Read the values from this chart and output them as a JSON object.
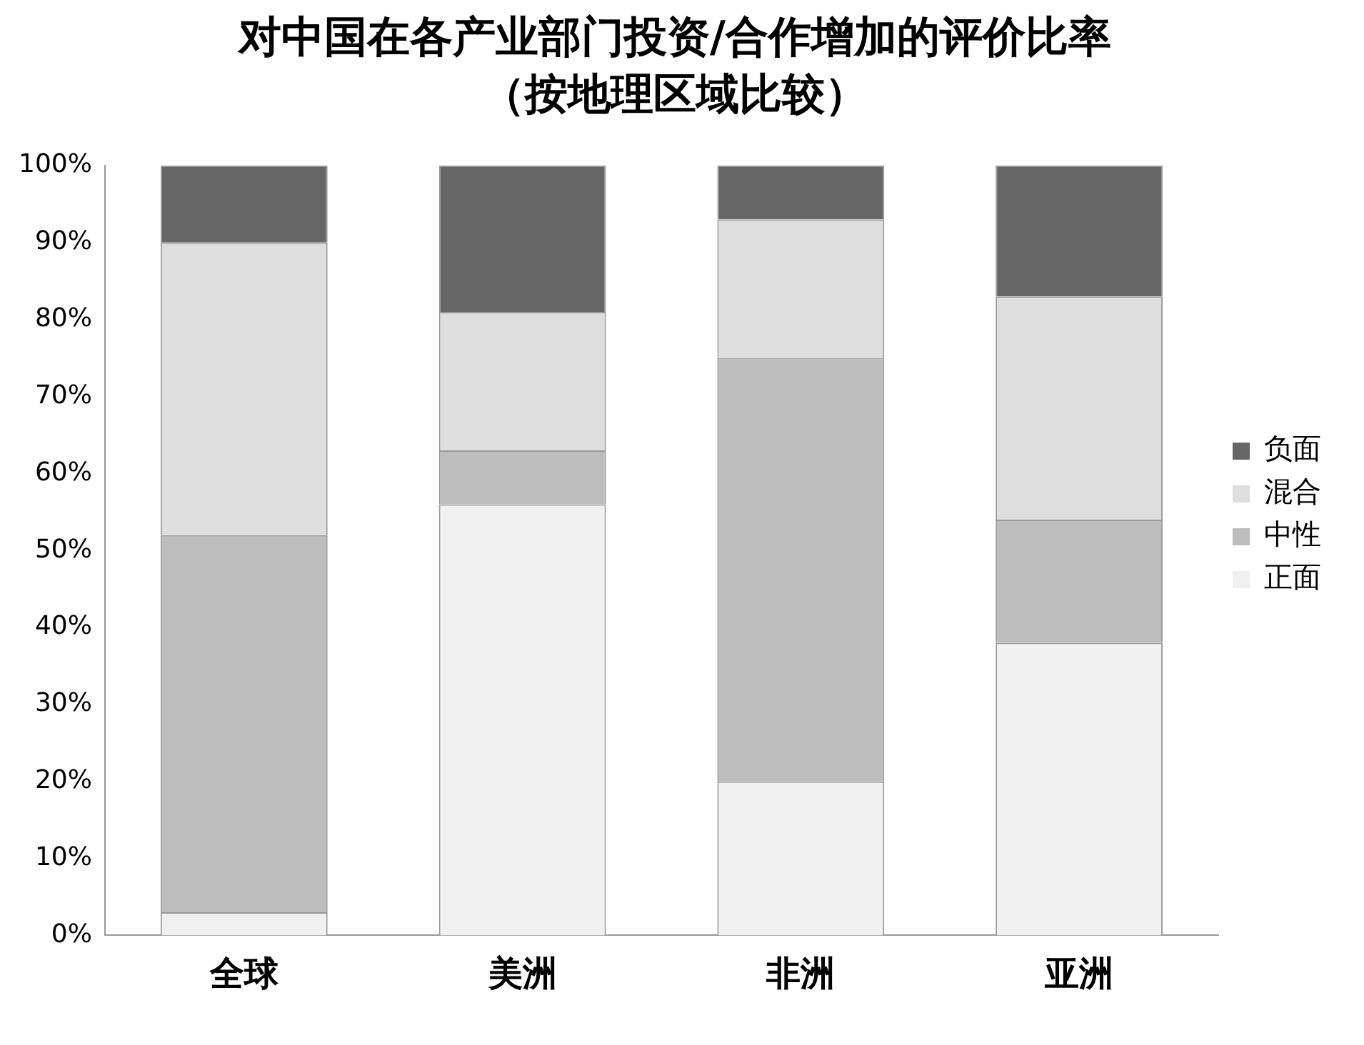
{
  "chart_data": {
    "type": "bar",
    "title": "对中国在各产业部门投资/合作增加的评价比率",
    "subtitle": "（按地理区域比较）",
    "categories": [
      "全球",
      "美洲",
      "非洲",
      "亚洲"
    ],
    "series": [
      {
        "name": "正面",
        "color": "#f0f0f0",
        "values": [
          3,
          56,
          20,
          38
        ]
      },
      {
        "name": "中性",
        "color": "#bdbdbd",
        "values": [
          49,
          7,
          55,
          16
        ]
      },
      {
        "name": "混合",
        "color": "#dedede",
        "values": [
          38,
          18,
          18,
          29
        ]
      },
      {
        "name": "负面",
        "color": "#666666",
        "values": [
          10,
          19,
          7,
          17
        ]
      }
    ],
    "stacked": true,
    "ylim": [
      0,
      100
    ],
    "yticks": [
      {
        "value": 0,
        "label": "0%"
      },
      {
        "value": 10,
        "label": "10%"
      },
      {
        "value": 20,
        "label": "20%"
      },
      {
        "value": 30,
        "label": "30%"
      },
      {
        "value": 40,
        "label": "40%"
      },
      {
        "value": 50,
        "label": "50%"
      },
      {
        "value": 60,
        "label": "60%"
      },
      {
        "value": 70,
        "label": "70%"
      },
      {
        "value": 80,
        "label": "80%"
      },
      {
        "value": 90,
        "label": "90%"
      },
      {
        "value": 100,
        "label": "100%"
      }
    ],
    "grid": false,
    "legend": "right"
  }
}
